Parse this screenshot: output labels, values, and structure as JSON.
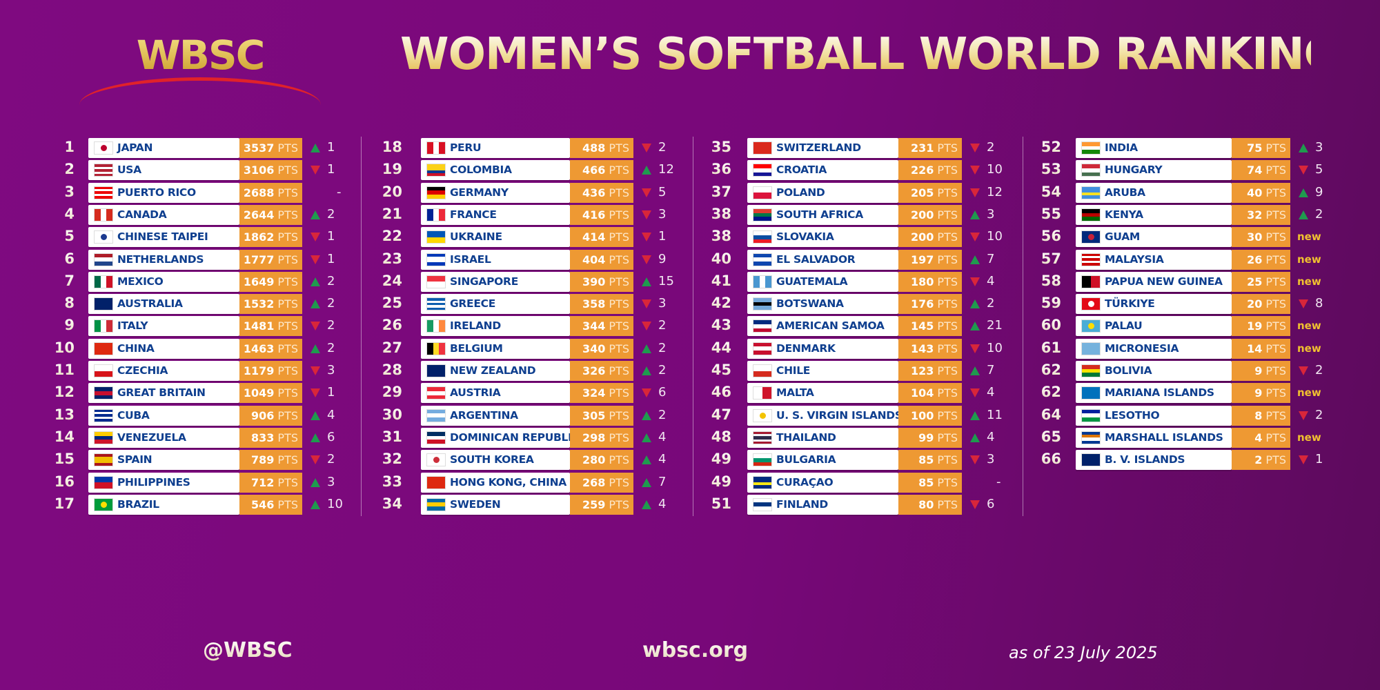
{
  "logo": "WBSC",
  "title": "WOMEN’S SOFTBALL WORLD RANKING",
  "pts_label": "PTS",
  "colors": {
    "up": "#1f9a4e",
    "down": "#d8263a",
    "points_bg": "#ee9933",
    "name": "#0f3f8f",
    "new": "#f0c030"
  },
  "columns": [
    [
      {
        "rank": "1",
        "country": "JAPAN",
        "points": "3537",
        "move": "up",
        "change": "1",
        "flag": [
          "#ffffff"
        ],
        "dot": "#bc002d"
      },
      {
        "rank": "2",
        "country": "USA",
        "points": "3106",
        "move": "down",
        "change": "1",
        "flag": [
          "#b22234",
          "#ffffff",
          "#b22234",
          "#ffffff",
          "#b22234"
        ]
      },
      {
        "rank": "3",
        "country": "PUERTO RICO",
        "points": "2688",
        "move": "none",
        "change": "-",
        "flag": [
          "#ed0000",
          "#ffffff",
          "#ed0000",
          "#ffffff",
          "#ed0000"
        ]
      },
      {
        "rank": "4",
        "country": "CANADA",
        "points": "2644",
        "move": "up",
        "change": "2",
        "flag": [
          "#d52b1e",
          "#ffffff",
          "#d52b1e"
        ],
        "v": true
      },
      {
        "rank": "5",
        "country": "CHINESE TAIPEI",
        "points": "1862",
        "move": "down",
        "change": "1",
        "flag": [
          "#ffffff"
        ],
        "dot": "#1c3a8f"
      },
      {
        "rank": "6",
        "country": "NETHERLANDS",
        "points": "1777",
        "move": "down",
        "change": "1",
        "flag": [
          "#ae1c28",
          "#ffffff",
          "#21468b"
        ]
      },
      {
        "rank": "7",
        "country": "MEXICO",
        "points": "1649",
        "move": "up",
        "change": "2",
        "flag": [
          "#006847",
          "#ffffff",
          "#ce1126"
        ],
        "v": true
      },
      {
        "rank": "8",
        "country": "AUSTRALIA",
        "points": "1532",
        "move": "up",
        "change": "2",
        "flag": [
          "#012169"
        ]
      },
      {
        "rank": "9",
        "country": "ITALY",
        "points": "1481",
        "move": "down",
        "change": "2",
        "flag": [
          "#009246",
          "#ffffff",
          "#ce2b37"
        ],
        "v": true
      },
      {
        "rank": "10",
        "country": "CHINA",
        "points": "1463",
        "move": "up",
        "change": "2",
        "flag": [
          "#de2910"
        ]
      },
      {
        "rank": "11",
        "country": "CZECHIA",
        "points": "1179",
        "move": "down",
        "change": "3",
        "flag": [
          "#ffffff",
          "#d7141a"
        ]
      },
      {
        "rank": "12",
        "country": "GREAT BRITAIN",
        "points": "1049",
        "move": "down",
        "change": "1",
        "flag": [
          "#012169",
          "#c8102e",
          "#012169"
        ]
      },
      {
        "rank": "13",
        "country": "CUBA",
        "points": "906",
        "move": "up",
        "change": "4",
        "flag": [
          "#002a8f",
          "#ffffff",
          "#002a8f",
          "#ffffff",
          "#002a8f"
        ]
      },
      {
        "rank": "14",
        "country": "VENEZUELA",
        "points": "833",
        "move": "up",
        "change": "6",
        "flag": [
          "#ffcc00",
          "#00247d",
          "#cf142b"
        ]
      },
      {
        "rank": "15",
        "country": "SPAIN",
        "points": "789",
        "move": "down",
        "change": "2",
        "flag": [
          "#aa151b",
          "#f1bf00",
          "#f1bf00",
          "#aa151b"
        ]
      },
      {
        "rank": "16",
        "country": "PHILIPPINES",
        "points": "712",
        "move": "up",
        "change": "3",
        "flag": [
          "#0038a8",
          "#ce1126"
        ]
      },
      {
        "rank": "17",
        "country": "BRAZIL",
        "points": "546",
        "move": "up",
        "change": "10",
        "flag": [
          "#009c3b"
        ],
        "dot": "#ffdf00"
      }
    ],
    [
      {
        "rank": "18",
        "country": "PERU",
        "points": "488",
        "move": "down",
        "change": "2",
        "flag": [
          "#d91023",
          "#ffffff",
          "#d91023"
        ],
        "v": true
      },
      {
        "rank": "19",
        "country": "COLOMBIA",
        "points": "466",
        "move": "up",
        "change": "12",
        "flag": [
          "#fcd116",
          "#fcd116",
          "#003893",
          "#ce1126"
        ]
      },
      {
        "rank": "20",
        "country": "GERMANY",
        "points": "436",
        "move": "down",
        "change": "5",
        "flag": [
          "#000000",
          "#dd0000",
          "#ffce00"
        ]
      },
      {
        "rank": "21",
        "country": "FRANCE",
        "points": "416",
        "move": "down",
        "change": "3",
        "flag": [
          "#002395",
          "#ffffff",
          "#ed2939"
        ],
        "v": true
      },
      {
        "rank": "22",
        "country": "UKRAINE",
        "points": "414",
        "move": "down",
        "change": "1",
        "flag": [
          "#0057b7",
          "#ffd700"
        ]
      },
      {
        "rank": "23",
        "country": "ISRAEL",
        "points": "404",
        "move": "down",
        "change": "9",
        "flag": [
          "#0038b8",
          "#ffffff",
          "#ffffff",
          "#0038b8"
        ]
      },
      {
        "rank": "24",
        "country": "SINGAPORE",
        "points": "390",
        "move": "up",
        "change": "15",
        "flag": [
          "#ef3340",
          "#ffffff"
        ]
      },
      {
        "rank": "25",
        "country": "GREECE",
        "points": "358",
        "move": "down",
        "change": "3",
        "flag": [
          "#0d5eaf",
          "#ffffff",
          "#0d5eaf",
          "#ffffff",
          "#0d5eaf"
        ]
      },
      {
        "rank": "26",
        "country": "IRELAND",
        "points": "344",
        "move": "down",
        "change": "2",
        "flag": [
          "#169b62",
          "#ffffff",
          "#ff883e"
        ],
        "v": true
      },
      {
        "rank": "27",
        "country": "BELGIUM",
        "points": "340",
        "move": "up",
        "change": "2",
        "flag": [
          "#000000",
          "#fdda24",
          "#ef3340"
        ],
        "v": true
      },
      {
        "rank": "28",
        "country": "NEW ZEALAND",
        "points": "326",
        "move": "up",
        "change": "2",
        "flag": [
          "#012169"
        ]
      },
      {
        "rank": "29",
        "country": "AUSTRIA",
        "points": "324",
        "move": "down",
        "change": "6",
        "flag": [
          "#ed2939",
          "#ffffff",
          "#ed2939"
        ]
      },
      {
        "rank": "30",
        "country": "ARGENTINA",
        "points": "305",
        "move": "up",
        "change": "2",
        "flag": [
          "#74acdf",
          "#ffffff",
          "#74acdf"
        ]
      },
      {
        "rank": "31",
        "country": "DOMINICAN REPUBLIC",
        "points": "298",
        "move": "up",
        "change": "4",
        "flag": [
          "#002d62",
          "#ffffff",
          "#ce1126"
        ]
      },
      {
        "rank": "32",
        "country": "SOUTH KOREA",
        "points": "280",
        "move": "up",
        "change": "4",
        "flag": [
          "#ffffff"
        ],
        "dot": "#cd2e3a"
      },
      {
        "rank": "33",
        "country": "HONG KONG, CHINA",
        "points": "268",
        "move": "up",
        "change": "7",
        "flag": [
          "#de2910"
        ]
      },
      {
        "rank": "34",
        "country": "SWEDEN",
        "points": "259",
        "move": "up",
        "change": "4",
        "flag": [
          "#006aa7",
          "#fecc00",
          "#006aa7"
        ]
      }
    ],
    [
      {
        "rank": "35",
        "country": "SWITZERLAND",
        "points": "231",
        "move": "down",
        "change": "2",
        "flag": [
          "#da291c"
        ]
      },
      {
        "rank": "36",
        "country": "CROATIA",
        "points": "226",
        "move": "down",
        "change": "10",
        "flag": [
          "#ff0000",
          "#ffffff",
          "#171796"
        ]
      },
      {
        "rank": "37",
        "country": "POLAND",
        "points": "205",
        "move": "down",
        "change": "12",
        "flag": [
          "#ffffff",
          "#dc143c"
        ]
      },
      {
        "rank": "38",
        "country": "SOUTH AFRICA",
        "points": "200",
        "move": "up",
        "change": "3",
        "flag": [
          "#e03c31",
          "#007749",
          "#001489"
        ]
      },
      {
        "rank": "38",
        "country": "SLOVAKIA",
        "points": "200",
        "move": "down",
        "change": "10",
        "flag": [
          "#ffffff",
          "#0b4ea2",
          "#ee1c25"
        ]
      },
      {
        "rank": "40",
        "country": "EL SALVADOR",
        "points": "197",
        "move": "up",
        "change": "7",
        "flag": [
          "#0f47af",
          "#ffffff",
          "#0f47af"
        ]
      },
      {
        "rank": "41",
        "country": "GUATEMALA",
        "points": "180",
        "move": "down",
        "change": "4",
        "flag": [
          "#4997d0",
          "#ffffff",
          "#4997d0"
        ],
        "v": true
      },
      {
        "rank": "42",
        "country": "BOTSWANA",
        "points": "176",
        "move": "up",
        "change": "2",
        "flag": [
          "#75aadb",
          "#000000",
          "#75aadb"
        ]
      },
      {
        "rank": "43",
        "country": "AMERICAN SAMOA",
        "points": "145",
        "move": "up",
        "change": "21",
        "flag": [
          "#002b7f",
          "#ffffff",
          "#bf0a30"
        ]
      },
      {
        "rank": "44",
        "country": "DENMARK",
        "points": "143",
        "move": "down",
        "change": "10",
        "flag": [
          "#c8102e",
          "#ffffff",
          "#c8102e"
        ]
      },
      {
        "rank": "45",
        "country": "CHILE",
        "points": "123",
        "move": "up",
        "change": "7",
        "flag": [
          "#ffffff",
          "#d52b1e"
        ]
      },
      {
        "rank": "46",
        "country": "MALTA",
        "points": "104",
        "move": "down",
        "change": "4",
        "flag": [
          "#ffffff",
          "#cf142b"
        ],
        "v": true
      },
      {
        "rank": "47",
        "country": "U. S. VIRGIN ISLANDS",
        "points": "100",
        "move": "up",
        "change": "11",
        "flag": [
          "#ffffff"
        ],
        "dot": "#f3c300"
      },
      {
        "rank": "48",
        "country": "THAILAND",
        "points": "99",
        "move": "up",
        "change": "4",
        "flag": [
          "#a51931",
          "#f4f5f8",
          "#2d2a4a",
          "#2d2a4a",
          "#f4f5f8",
          "#a51931"
        ]
      },
      {
        "rank": "49",
        "country": "BULGARIA",
        "points": "85",
        "move": "down",
        "change": "3",
        "flag": [
          "#ffffff",
          "#00966e",
          "#d62612"
        ]
      },
      {
        "rank": "49",
        "country": "CURAÇAO",
        "points": "85",
        "move": "none",
        "change": "-",
        "flag": [
          "#002b7f",
          "#002b7f",
          "#f9e814",
          "#002b7f"
        ]
      },
      {
        "rank": "51",
        "country": "FINLAND",
        "points": "80",
        "move": "down",
        "change": "6",
        "flag": [
          "#ffffff",
          "#003580",
          "#ffffff"
        ]
      }
    ],
    [
      {
        "rank": "52",
        "country": "INDIA",
        "points": "75",
        "move": "up",
        "change": "3",
        "flag": [
          "#ff9933",
          "#ffffff",
          "#138808"
        ]
      },
      {
        "rank": "53",
        "country": "HUNGARY",
        "points": "74",
        "move": "down",
        "change": "5",
        "flag": [
          "#ce2939",
          "#ffffff",
          "#477050"
        ]
      },
      {
        "rank": "54",
        "country": "ARUBA",
        "points": "40",
        "move": "up",
        "change": "9",
        "flag": [
          "#418fde",
          "#418fde",
          "#fbe122",
          "#418fde"
        ]
      },
      {
        "rank": "55",
        "country": "KENYA",
        "points": "32",
        "move": "up",
        "change": "2",
        "flag": [
          "#000000",
          "#bb0000",
          "#006600"
        ]
      },
      {
        "rank": "56",
        "country": "GUAM",
        "points": "30",
        "move": "new",
        "change": "new",
        "flag": [
          "#00297b"
        ],
        "dot": "#c62139"
      },
      {
        "rank": "57",
        "country": "MALAYSIA",
        "points": "26",
        "move": "new",
        "change": "new",
        "flag": [
          "#cc0001",
          "#ffffff",
          "#cc0001",
          "#ffffff",
          "#cc0001"
        ]
      },
      {
        "rank": "58",
        "country": "PAPUA NEW GUINEA",
        "points": "25",
        "move": "new",
        "change": "new",
        "flag": [
          "#000000",
          "#ce1126"
        ],
        "v": true
      },
      {
        "rank": "59",
        "country": "TÜRKIYE",
        "points": "20",
        "move": "down",
        "change": "8",
        "flag": [
          "#e30a17"
        ],
        "dot": "#ffffff"
      },
      {
        "rank": "60",
        "country": "PALAU",
        "points": "19",
        "move": "new",
        "change": "new",
        "flag": [
          "#4aadd6"
        ],
        "dot": "#ffde00"
      },
      {
        "rank": "61",
        "country": "MICRONESIA",
        "points": "14",
        "move": "new",
        "change": "new",
        "flag": [
          "#75b2dd"
        ]
      },
      {
        "rank": "62",
        "country": "BOLIVIA",
        "points": "9",
        "move": "down",
        "change": "2",
        "flag": [
          "#d52b1e",
          "#f9e300",
          "#007934"
        ]
      },
      {
        "rank": "62",
        "country": "MARIANA ISLANDS",
        "points": "9",
        "move": "new",
        "change": "new",
        "flag": [
          "#0071bc"
        ]
      },
      {
        "rank": "64",
        "country": "LESOTHO",
        "points": "8",
        "move": "down",
        "change": "2",
        "flag": [
          "#00209f",
          "#ffffff",
          "#009543"
        ]
      },
      {
        "rank": "65",
        "country": "MARSHALL ISLANDS",
        "points": "4",
        "move": "new",
        "change": "new",
        "flag": [
          "#003893",
          "#dd7500",
          "#ffffff",
          "#003893"
        ]
      },
      {
        "rank": "66",
        "country": "B. V. ISLANDS",
        "points": "2",
        "move": "down",
        "change": "1",
        "flag": [
          "#012169"
        ]
      }
    ]
  ],
  "footer": {
    "handle": "@WBSC",
    "site": "wbsc.org",
    "as_of": "as of 23 July 2025"
  }
}
